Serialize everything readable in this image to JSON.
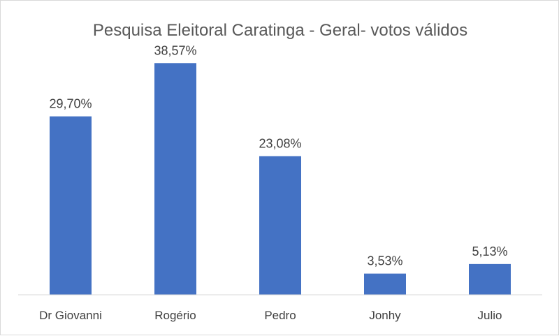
{
  "chart_data": {
    "type": "bar",
    "title": "Pesquisa  Eleitoral Caratinga - Geral- votos válidos",
    "categories": [
      "Dr Giovanni",
      "Rogério",
      "Pedro",
      "Jonhy",
      "Julio"
    ],
    "values": [
      29.7,
      38.57,
      23.08,
      3.53,
      5.13
    ],
    "data_labels": [
      "29,70%",
      "38,57%",
      "23,08%",
      "3,53%",
      "5,13%"
    ],
    "xlabel": "",
    "ylabel": "",
    "ylim": [
      0,
      45
    ],
    "grid": false,
    "legend": "none",
    "bar_color": "#4472C4"
  }
}
